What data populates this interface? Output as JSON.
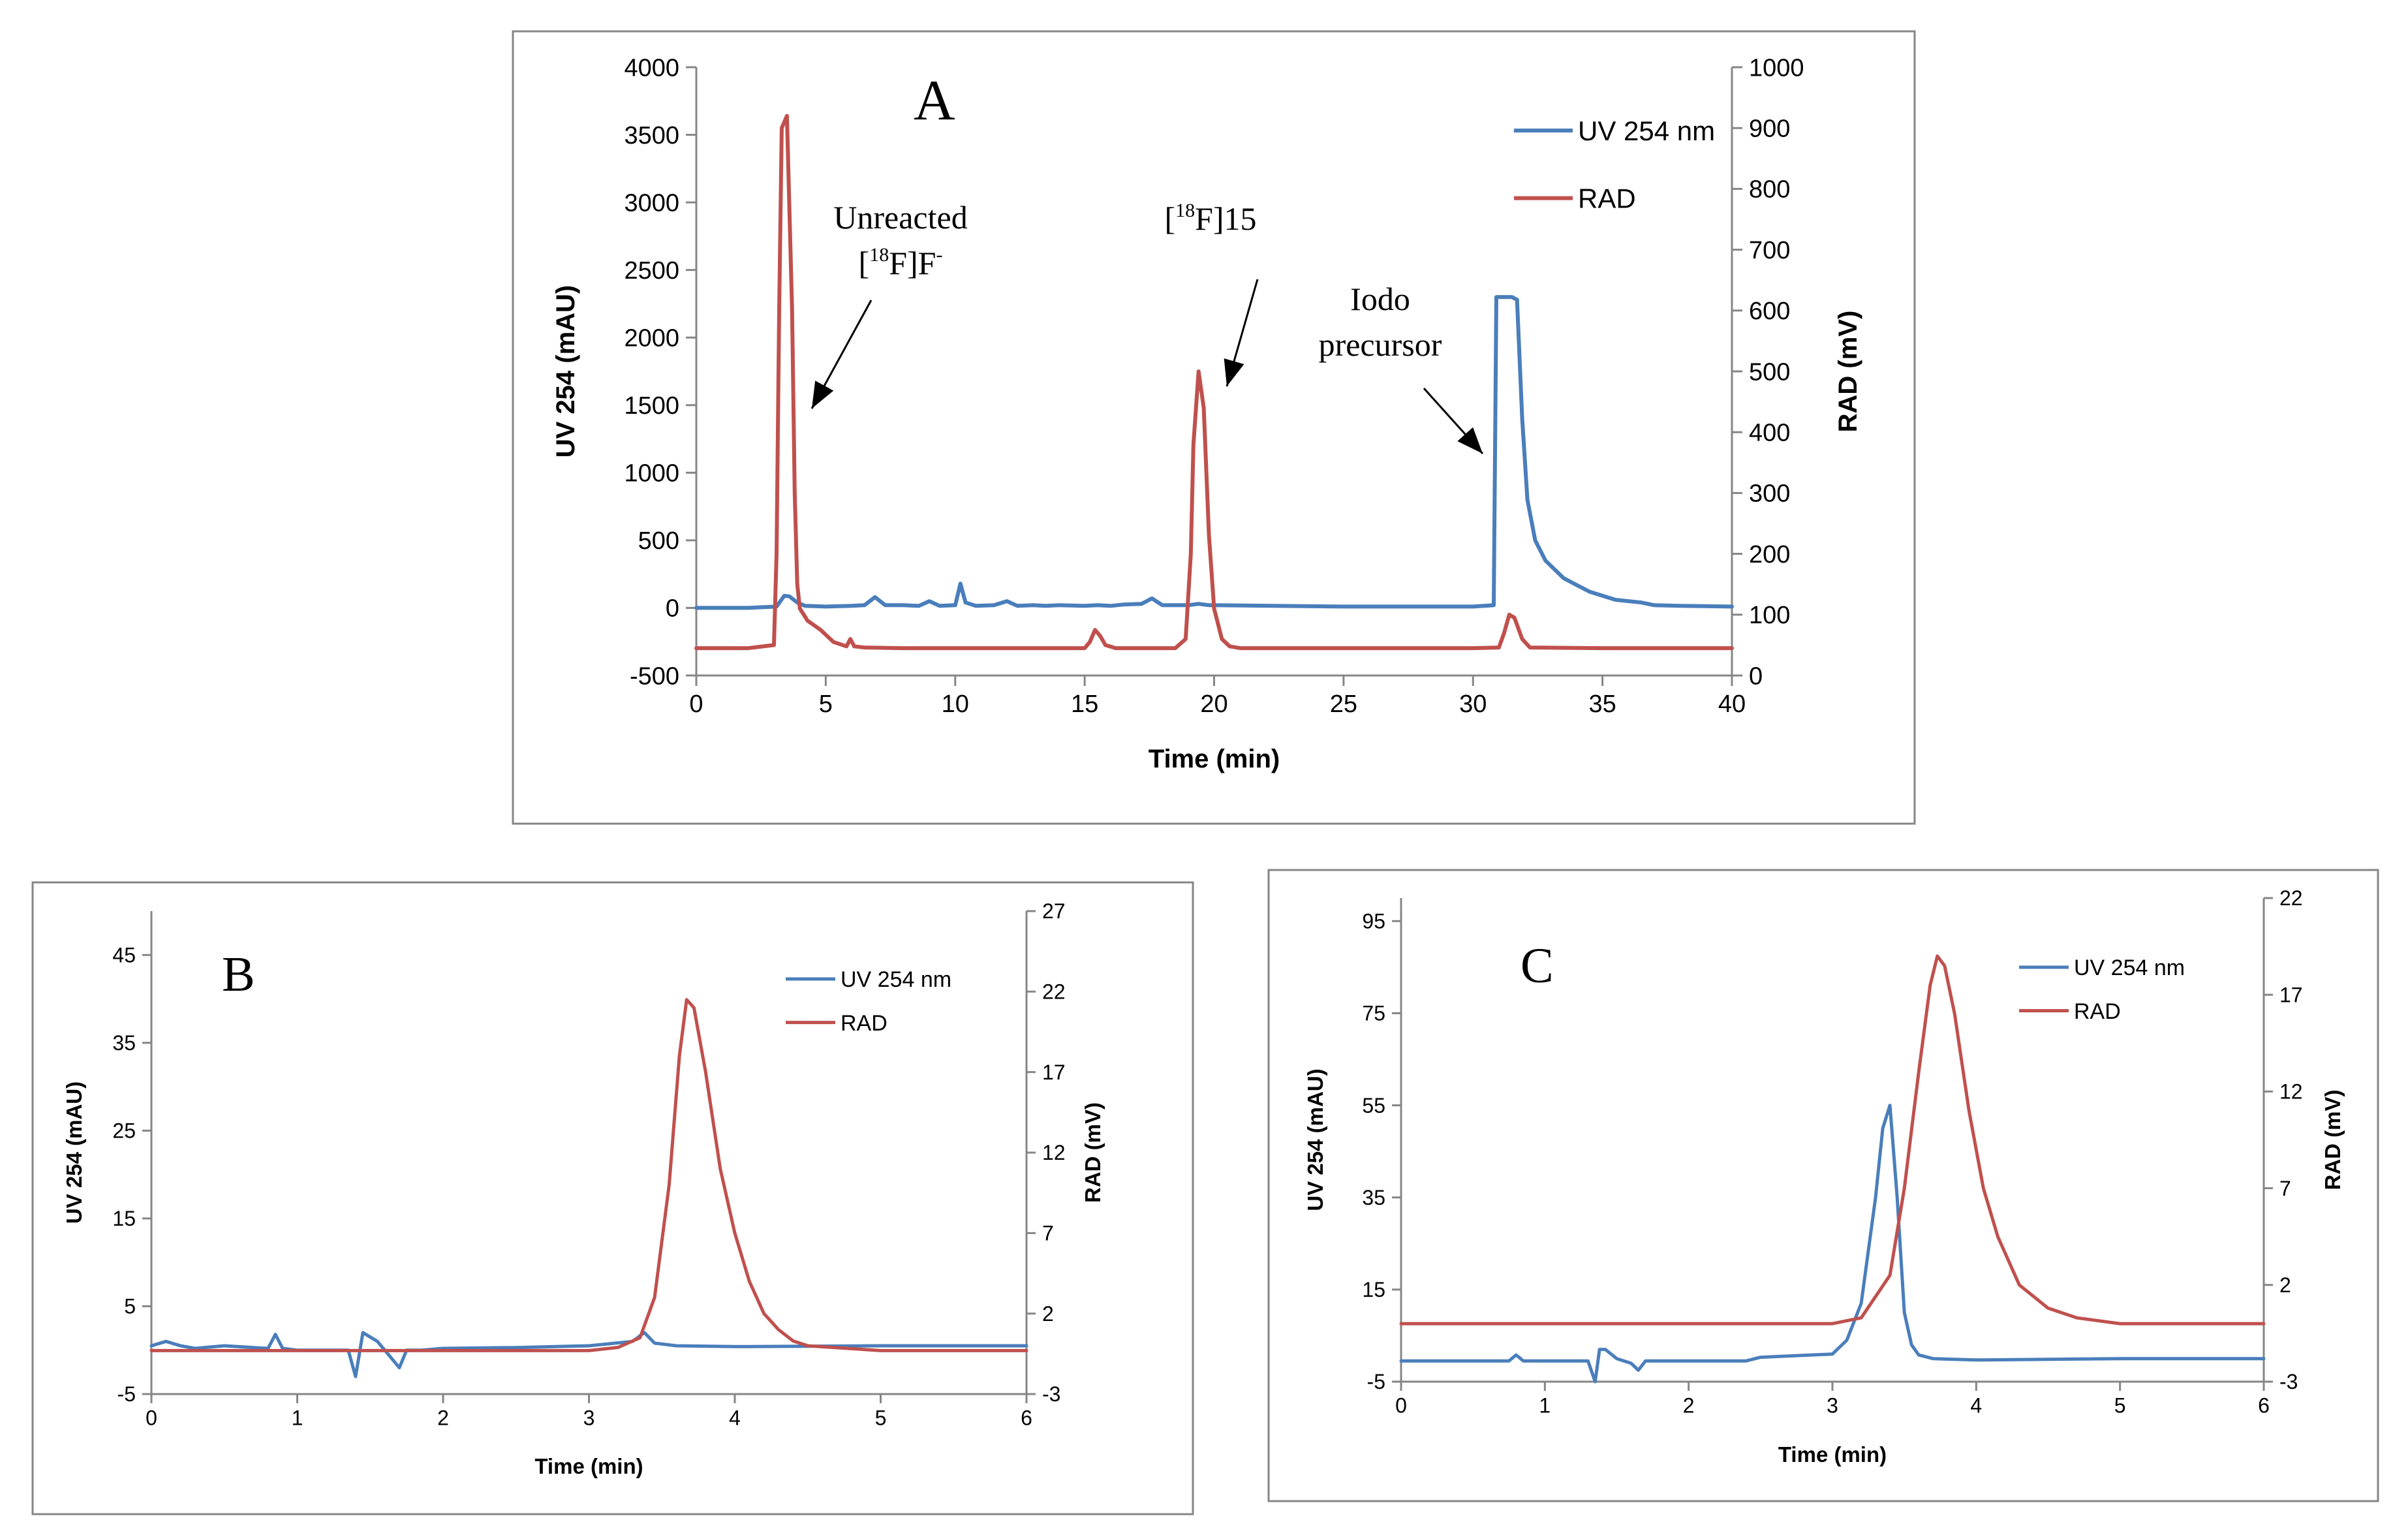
{
  "chart_data": [
    {
      "id": "A",
      "type": "line",
      "panel_label": "A",
      "xlabel": "Time (min)",
      "ylabel": "UV 254 (mAU)",
      "y2label": "RAD (mV)",
      "xlim": [
        0,
        40
      ],
      "ylim": [
        -500,
        4000
      ],
      "y2lim": [
        0,
        1000
      ],
      "xticks": [
        "0",
        "5",
        "10",
        "15",
        "20",
        "25",
        "30",
        "35",
        "40"
      ],
      "yticks": [
        "-500",
        "0",
        "500",
        "1000",
        "1500",
        "2000",
        "2500",
        "3000",
        "3500",
        "4000"
      ],
      "y2ticks": [
        "0",
        "100",
        "200",
        "300",
        "400",
        "500",
        "600",
        "700",
        "800",
        "900",
        "1000"
      ],
      "legend": [
        "UV 254 nm",
        "RAD"
      ],
      "annotations": [
        {
          "line1": "Unreacted",
          "line2_pre": "[",
          "line2_sup": "18",
          "line2_mid": "F]F",
          "line2_sup2": "-"
        },
        {
          "pre": "[",
          "sup": "18",
          "post": "F]15"
        },
        {
          "line1": "Iodo",
          "line2": "precursor"
        }
      ],
      "series": [
        {
          "name": "UV 254 nm",
          "axis": "left",
          "color": "#4a7ebb",
          "x": [
            0,
            2,
            3.1,
            3.4,
            3.6,
            3.9,
            4.2,
            5,
            6,
            6.5,
            6.9,
            7.3,
            8,
            8.6,
            9,
            9.4,
            10,
            10.2,
            10.4,
            10.8,
            11.5,
            12,
            12.4,
            13,
            13.5,
            14,
            15,
            15.5,
            16,
            16.5,
            17.2,
            17.6,
            18,
            18.5,
            19,
            19.4,
            19.8,
            20,
            25,
            30,
            30.8,
            30.9,
            31.0,
            31.2,
            31.5,
            31.7,
            31.9,
            32.1,
            32.4,
            32.8,
            33.5,
            34.5,
            35.5,
            36.5,
            37,
            38,
            40
          ],
          "values": [
            0,
            0,
            10,
            90,
            85,
            40,
            15,
            10,
            15,
            20,
            80,
            20,
            20,
            15,
            50,
            15,
            20,
            180,
            40,
            15,
            20,
            50,
            15,
            20,
            15,
            20,
            15,
            20,
            15,
            25,
            30,
            70,
            20,
            20,
            20,
            30,
            20,
            20,
            10,
            10,
            20,
            2300,
            2300,
            2300,
            2300,
            2280,
            1400,
            800,
            500,
            350,
            220,
            120,
            60,
            40,
            20,
            15,
            10
          ]
        },
        {
          "name": "RAD",
          "axis": "right",
          "color": "#c0504d",
          "x": [
            0,
            2,
            3.0,
            3.1,
            3.2,
            3.3,
            3.5,
            3.7,
            3.8,
            3.9,
            4.0,
            4.3,
            4.8,
            5.3,
            5.8,
            5.95,
            6.1,
            6.5,
            8,
            10,
            15,
            15.2,
            15.4,
            15.6,
            15.8,
            16.2,
            17,
            18.5,
            18.9,
            19.1,
            19.2,
            19.4,
            19.6,
            19.8,
            20.0,
            20.3,
            20.6,
            21,
            25,
            30,
            31,
            31.2,
            31.4,
            31.6,
            31.9,
            32.2,
            35,
            40
          ],
          "values": [
            45,
            45,
            50,
            200,
            600,
            900,
            920,
            600,
            300,
            150,
            110,
            90,
            75,
            55,
            48,
            60,
            48,
            46,
            45,
            45,
            45,
            55,
            75,
            65,
            50,
            45,
            45,
            45,
            60,
            200,
            380,
            500,
            440,
            230,
            110,
            60,
            48,
            45,
            45,
            45,
            46,
            70,
            100,
            95,
            60,
            46,
            45,
            45
          ]
        }
      ]
    },
    {
      "id": "B",
      "type": "line",
      "panel_label": "B",
      "xlabel": "Time (min)",
      "ylabel": "UV 254 (mAU)",
      "y2label": "RAD (mV)",
      "xlim": [
        0,
        6
      ],
      "ylim": [
        -5,
        50
      ],
      "y2lim": [
        -3,
        27
      ],
      "xticks": [
        "0",
        "1",
        "2",
        "3",
        "4",
        "5",
        "6"
      ],
      "yticks": [
        "-5",
        "5",
        "15",
        "25",
        "35",
        "45"
      ],
      "y2ticks": [
        "-3",
        "2",
        "7",
        "12",
        "17",
        "22",
        "27"
      ],
      "legend": [
        "UV 254 nm",
        "RAD"
      ],
      "series": [
        {
          "name": "UV 254 nm",
          "axis": "left",
          "color": "#4a7ebb",
          "x": [
            0,
            0.1,
            0.2,
            0.3,
            0.5,
            0.7,
            0.8,
            0.85,
            0.9,
            1.0,
            1.2,
            1.35,
            1.4,
            1.45,
            1.55,
            1.65,
            1.7,
            1.75,
            1.85,
            2.0,
            2.5,
            3.0,
            3.3,
            3.38,
            3.45,
            3.6,
            4,
            5,
            6
          ],
          "values": [
            0.5,
            1,
            0.5,
            0.2,
            0.5,
            0.3,
            0.2,
            1.8,
            0.2,
            0,
            0,
            0,
            -3,
            2,
            1,
            -1,
            -2,
            0,
            0,
            0.2,
            0.3,
            0.5,
            1,
            2,
            0.8,
            0.5,
            0.4,
            0.5,
            0.5
          ]
        },
        {
          "name": "RAD",
          "axis": "right",
          "color": "#c0504d",
          "x": [
            0,
            1,
            2,
            3,
            3.2,
            3.35,
            3.45,
            3.55,
            3.62,
            3.67,
            3.72,
            3.8,
            3.9,
            4.0,
            4.1,
            4.2,
            4.3,
            4.4,
            4.5,
            5,
            6
          ],
          "values": [
            -0.3,
            -0.3,
            -0.3,
            -0.3,
            -0.1,
            0.5,
            3,
            10,
            18,
            21.5,
            21,
            17,
            11,
            7,
            4,
            2,
            1,
            0.3,
            0,
            -0.3,
            -0.3
          ]
        }
      ]
    },
    {
      "id": "C",
      "type": "line",
      "panel_label": "C",
      "xlabel": "Time (min)",
      "ylabel": "UV 254 (mAU)",
      "y2label": "RAD (mV)",
      "xlim": [
        0,
        6
      ],
      "ylim": [
        -5,
        100
      ],
      "y2lim": [
        -3,
        22
      ],
      "xticks": [
        "0",
        "1",
        "2",
        "3",
        "4",
        "5",
        "6"
      ],
      "yticks": [
        "-5",
        "15",
        "35",
        "55",
        "75",
        "95"
      ],
      "y2ticks": [
        "-3",
        "2",
        "7",
        "12",
        "17",
        "22"
      ],
      "legend": [
        "UV 254 nm",
        "RAD"
      ],
      "series": [
        {
          "name": "UV 254 nm",
          "axis": "left",
          "color": "#4a7ebb",
          "x": [
            0,
            0.5,
            0.75,
            0.8,
            0.85,
            1.0,
            1.3,
            1.35,
            1.38,
            1.42,
            1.5,
            1.6,
            1.65,
            1.7,
            2,
            2.4,
            2.5,
            3,
            3.1,
            3.2,
            3.3,
            3.35,
            3.4,
            3.45,
            3.5,
            3.55,
            3.6,
            3.7,
            4,
            5,
            6
          ],
          "values": [
            -0.5,
            -0.5,
            -0.5,
            0.8,
            -0.5,
            -0.5,
            -0.5,
            -5,
            2,
            2,
            0,
            -1,
            -2.5,
            -0.5,
            -0.5,
            -0.5,
            0.3,
            1,
            4,
            12,
            35,
            50,
            55,
            35,
            10,
            3,
            0.8,
            0,
            -0.3,
            0,
            0
          ]
        },
        {
          "name": "RAD",
          "axis": "right",
          "color": "#c0504d",
          "x": [
            0,
            1,
            2,
            3,
            3.2,
            3.4,
            3.5,
            3.6,
            3.68,
            3.73,
            3.78,
            3.85,
            3.95,
            4.05,
            4.15,
            4.3,
            4.5,
            4.7,
            5,
            6
          ],
          "values": [
            0,
            0,
            0,
            0,
            0.3,
            2.5,
            7,
            13,
            17.5,
            19,
            18.5,
            16,
            11,
            7,
            4.5,
            2,
            0.8,
            0.3,
            0,
            0
          ]
        }
      ]
    }
  ]
}
